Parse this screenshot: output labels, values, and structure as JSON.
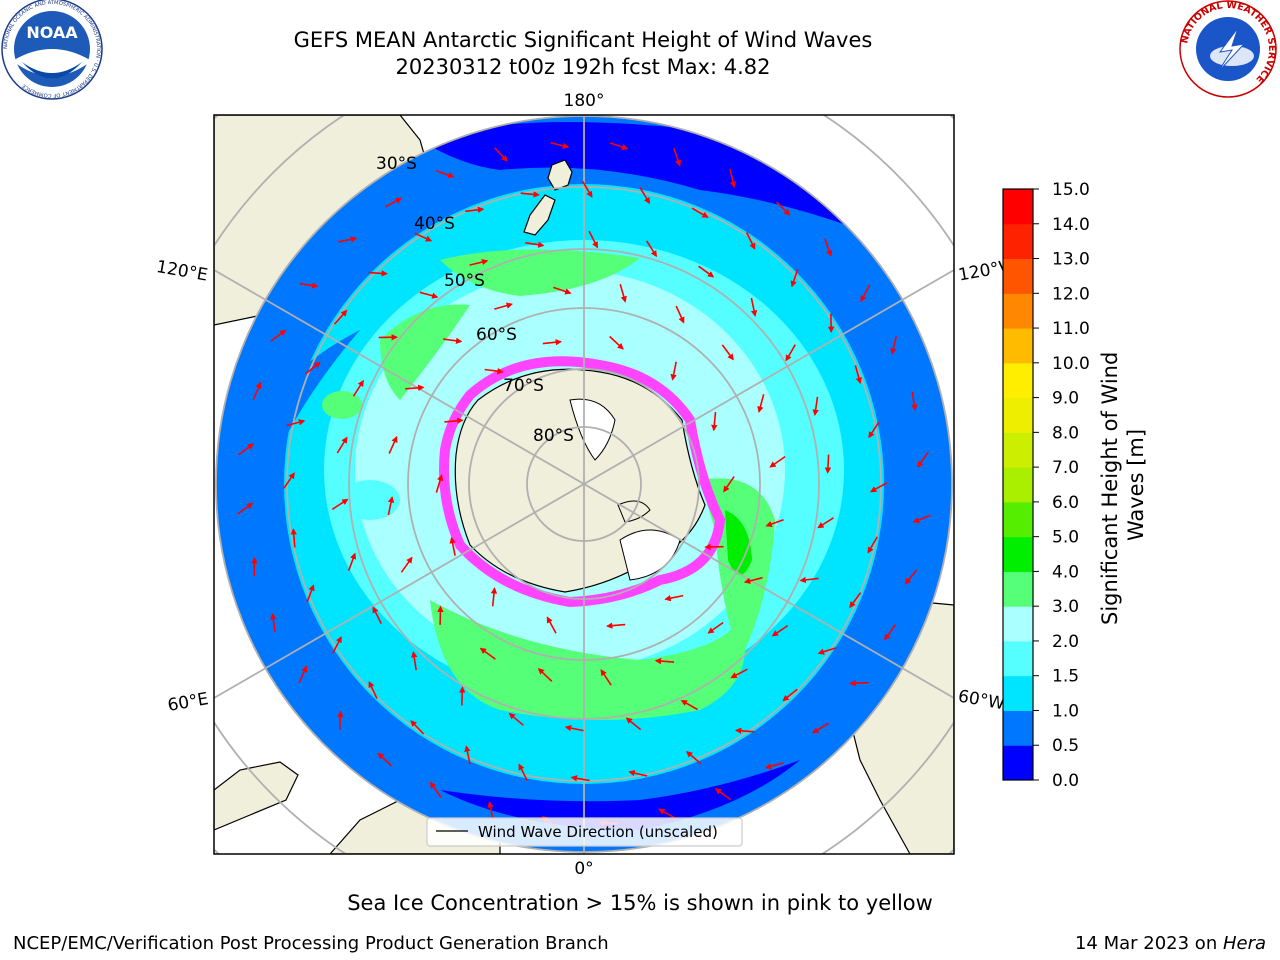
{
  "title_line1": "GEFS MEAN Antarctic Significant Height of Wind Waves",
  "title_line2": "20230312 t00z 192h fcst   Max: 4.82",
  "caption": "Sea Ice Concentration > 15% is shown in pink to yellow",
  "footer_left": "NCEP/EMC/Verification Post Processing Product Generation Branch",
  "footer_right_prefix": "14 Mar 2023 on ",
  "footer_right_host": "Hera",
  "logos": {
    "noaa_text": "NOAA",
    "noaa_ring_text": "NATIONAL OCEANIC AND ATMOSPHERIC ADMINISTRATION · U.S. DEPARTMENT OF COMMERCE",
    "nws_ring_text": "NATIONAL WEATHER SERVICE"
  },
  "map": {
    "lon_labels": {
      "top": "180°",
      "bottom": "0°",
      "upper_left": "120°E",
      "upper_right": "120°W",
      "lower_left": "60°E",
      "lower_right": "60°W"
    },
    "lat_labels": [
      "30°S",
      "40°S",
      "50°S",
      "60°S",
      "70°S",
      "80°S"
    ],
    "legend_label": "Wind Wave Direction (unscaled)"
  },
  "colorbar": {
    "label": "Significant Height of Wind Waves [m]",
    "label_line1": "Significant Height of Wind",
    "label_line2": "Waves [m]",
    "ticks": [
      "0.0",
      "0.5",
      "1.0",
      "1.5",
      "2.0",
      "3.0",
      "4.0",
      "5.0",
      "6.0",
      "7.0",
      "8.0",
      "9.0",
      "10.0",
      "11.0",
      "12.0",
      "13.0",
      "14.0",
      "15.0"
    ],
    "colors": [
      "#0000ff",
      "#0077ff",
      "#00e5ff",
      "#55ffff",
      "#aaffff",
      "#55ff77",
      "#00ee00",
      "#55ee00",
      "#aaee00",
      "#ccee00",
      "#eeee00",
      "#ffee00",
      "#ffbb00",
      "#ff8800",
      "#ff5500",
      "#ff2200",
      "#ff0000"
    ]
  },
  "colors": {
    "land": "#efefdb",
    "arrow": "#ff0000",
    "grid": "#b0b0b0",
    "ice_pink": "#ff44ff",
    "ice_yellow": "#ffff88"
  }
}
